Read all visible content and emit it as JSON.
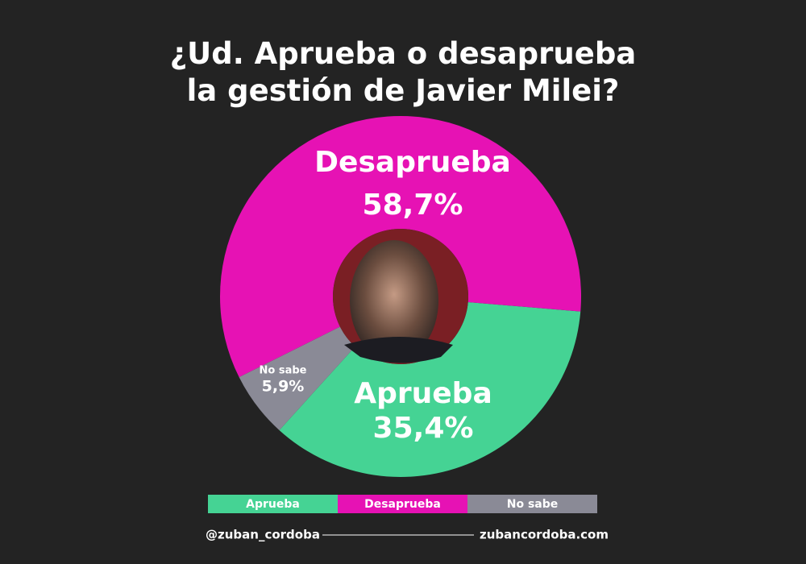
{
  "chart_data": {
    "type": "donut",
    "title": "¿Ud. Aprueba o desaprueba la gestión de Javier Milei?",
    "series": [
      {
        "name": "Aprueba",
        "color": "#45d394",
        "values": [
          35.4
        ],
        "value_labels": [
          "35,4%"
        ]
      },
      {
        "name": "Desaprueba",
        "color": "#e612b4",
        "values": [
          58.7
        ],
        "value_labels": [
          "58,7%"
        ]
      },
      {
        "name": "No sabe",
        "color": "#8a8a96",
        "values": [
          5.9
        ],
        "value_labels": [
          "5,9%"
        ]
      }
    ]
  },
  "footer": {
    "handle": "@zuban_cordoba",
    "website": "zubancordoba.com"
  }
}
